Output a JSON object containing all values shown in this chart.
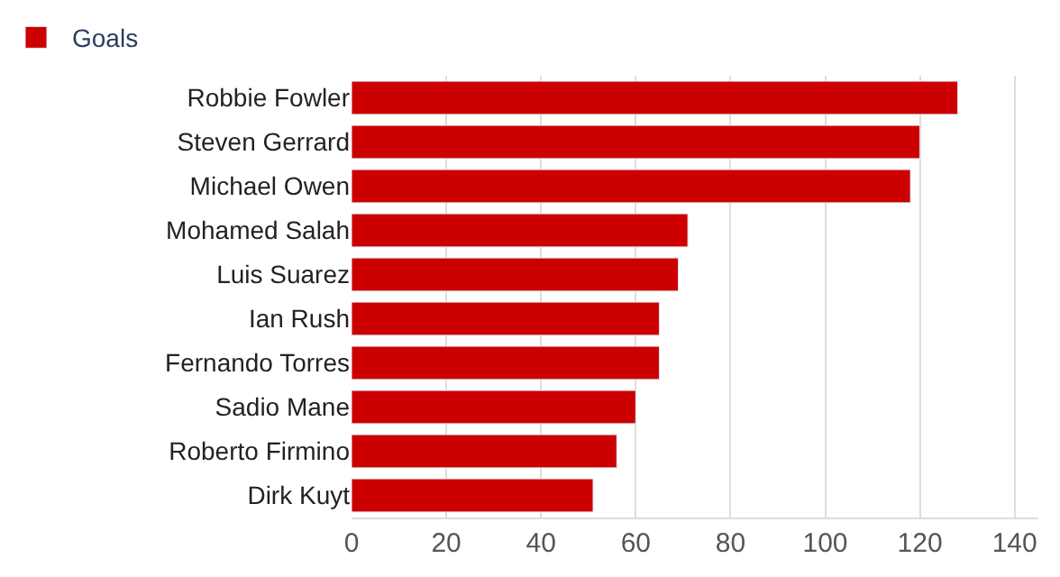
{
  "chart_data": {
    "type": "bar",
    "orientation": "horizontal",
    "categories": [
      "Robbie Fowler",
      "Steven Gerrard",
      "Michael Owen",
      "Mohamed Salah",
      "Luis Suarez",
      "Ian Rush",
      "Fernando Torres",
      "Sadio Mane",
      "Roberto Firmino",
      "Dirk Kuyt"
    ],
    "series": [
      {
        "name": "Goals",
        "color": "#cc0000",
        "values": [
          128,
          120,
          118,
          71,
          69,
          65,
          65,
          60,
          56,
          51
        ]
      }
    ],
    "xlim": [
      0,
      145
    ],
    "xticks": [
      0,
      20,
      40,
      60,
      80,
      100,
      120,
      140
    ],
    "grid": "x",
    "legend": "top left"
  }
}
